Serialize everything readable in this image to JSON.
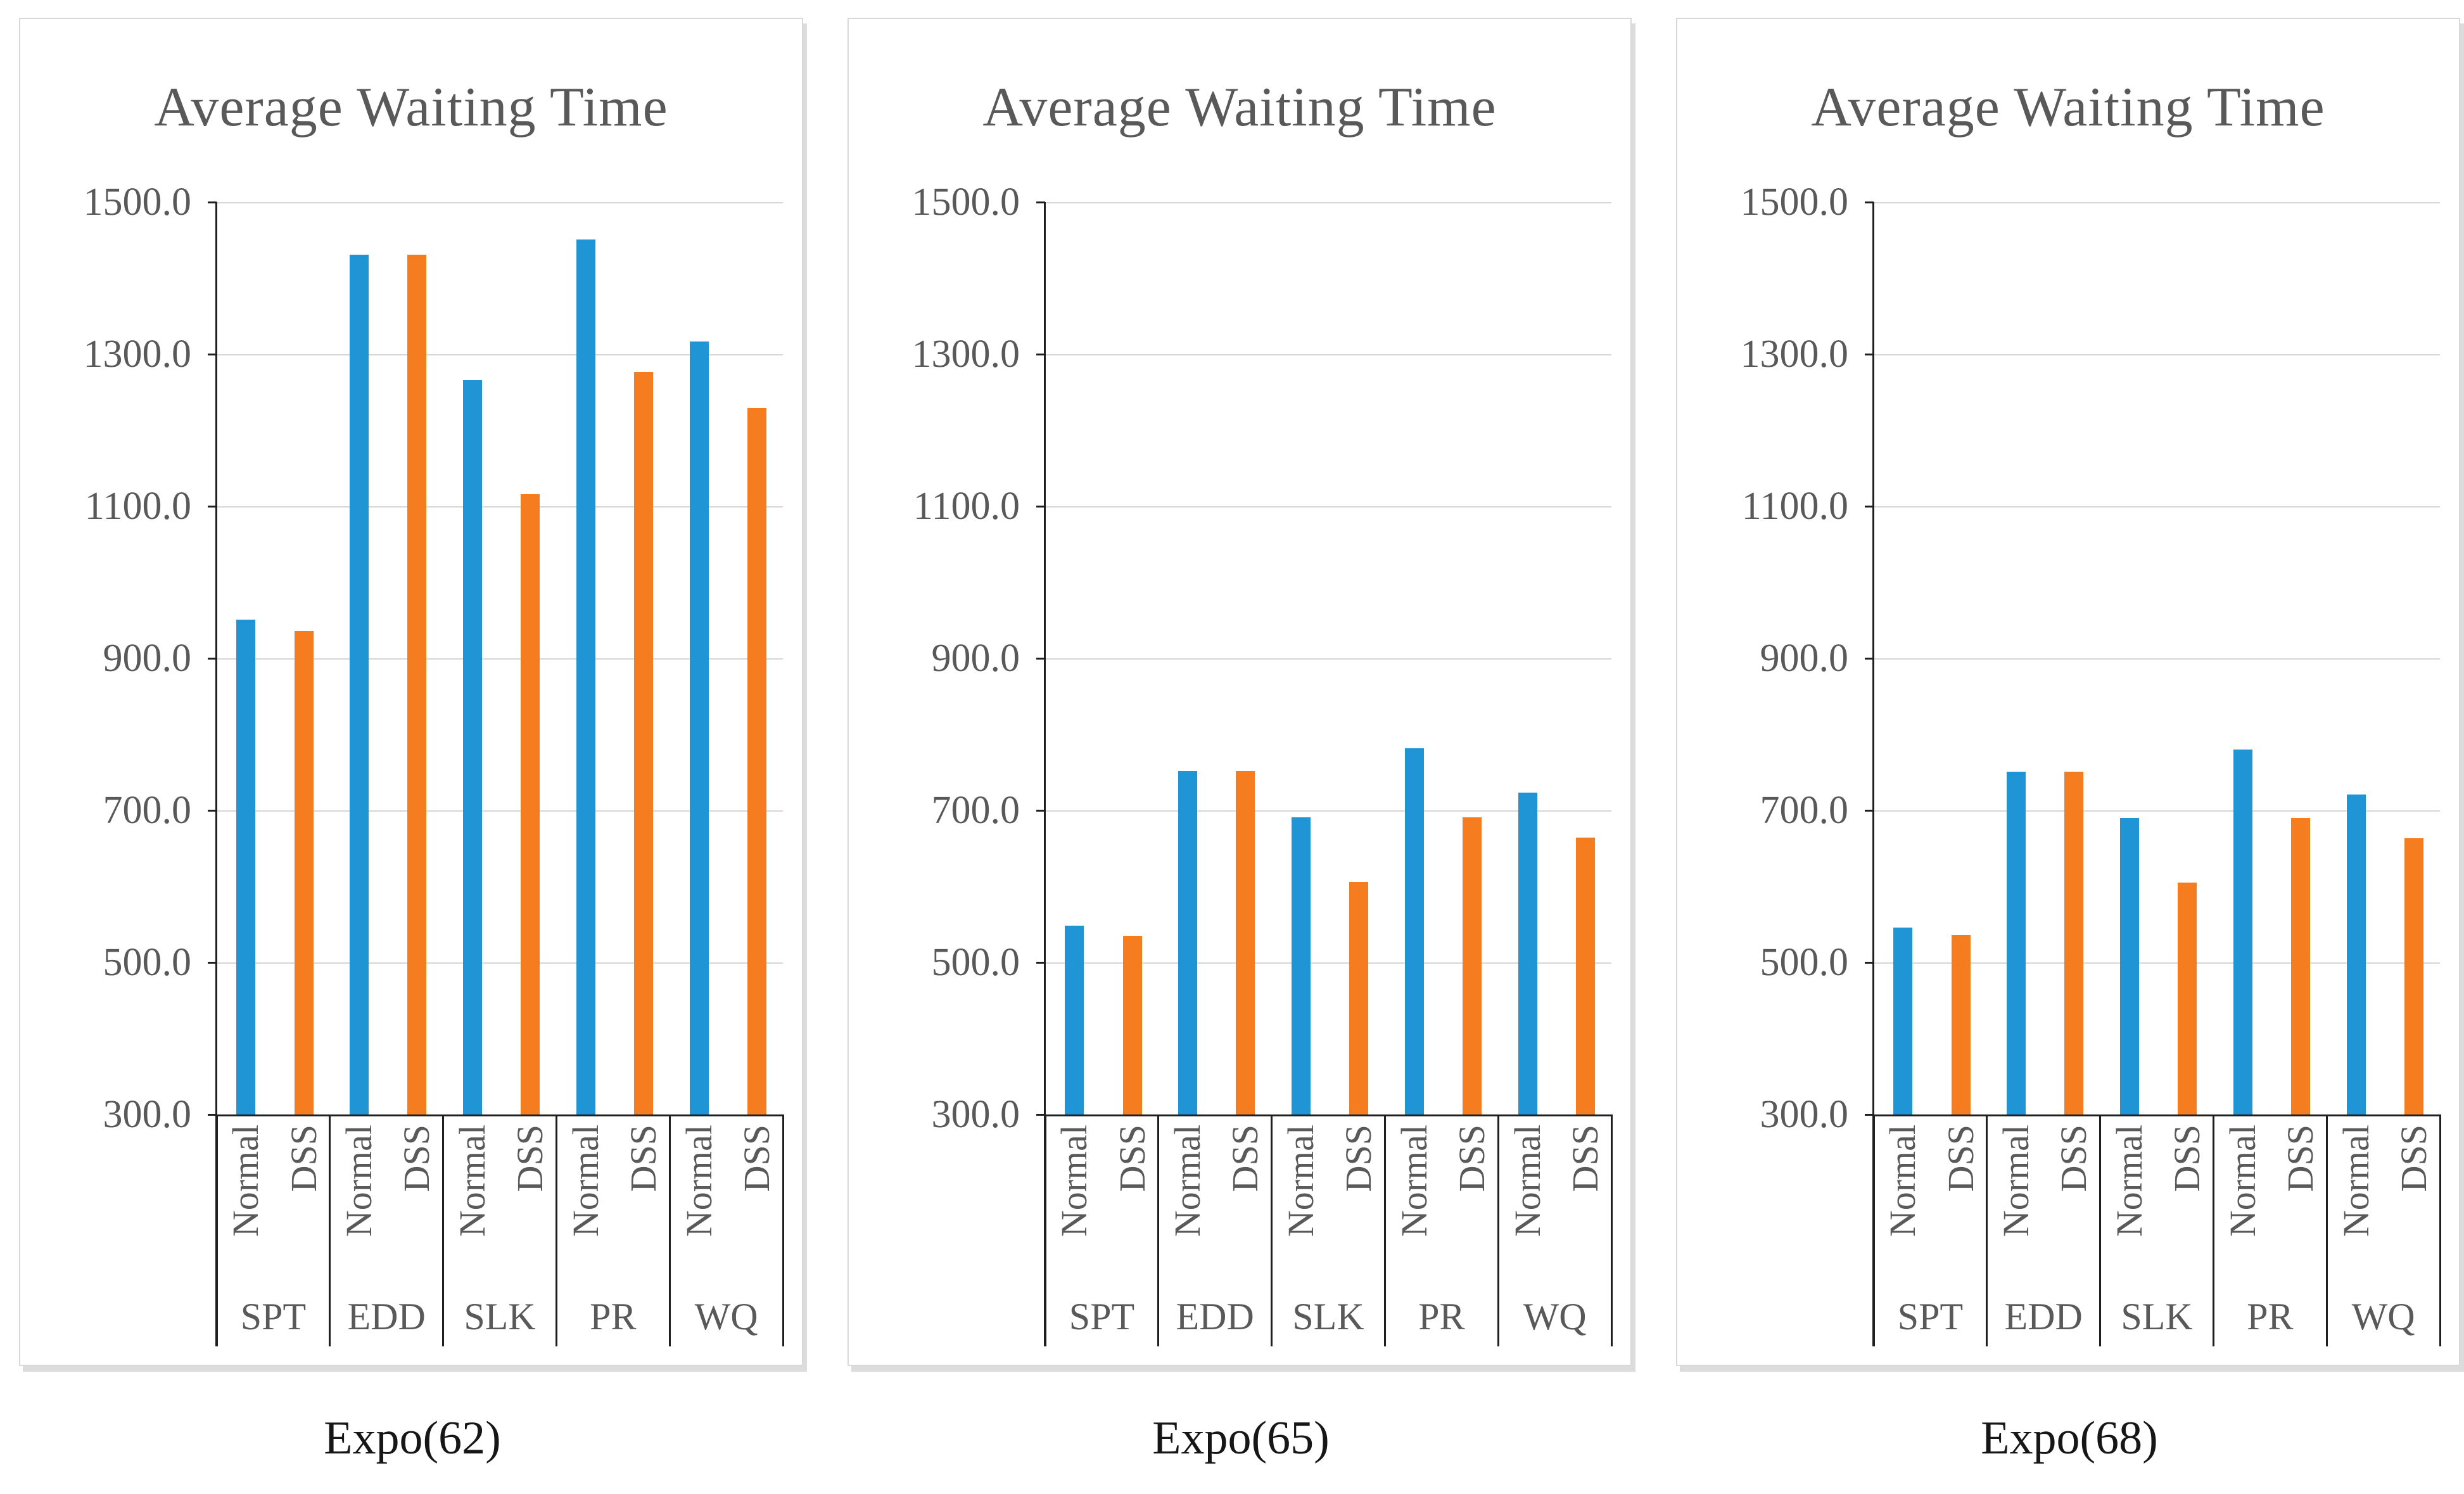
{
  "figure": {
    "background": "#ffffff",
    "panel_count": 3
  },
  "theme": {
    "grid_color": "#d6d6d6",
    "axis_color": "#1f1f1f",
    "label_color": "#595959",
    "caption_color": "#161616",
    "panel_border": "#d9d9d9",
    "panel_shadow": "#dcdcdc",
    "background": "#ffffff",
    "normal_series_color": "#2095d5",
    "dss_series_color": "#f67c20"
  },
  "chart_data": [
    {
      "type": "bar",
      "title": "Average Waiting Time",
      "caption": "Expo(62)",
      "categories": [
        "SPT",
        "EDD",
        "SLK",
        "PR",
        "WQ"
      ],
      "sub_labels": [
        "Normal",
        "DSS"
      ],
      "series": [
        {
          "name": "Normal",
          "color": "#2095d5",
          "values": [
            951,
            1431,
            1266,
            1451,
            1317
          ]
        },
        {
          "name": "DSS",
          "color": "#f67c20",
          "values": [
            936,
            1431,
            1116,
            1277,
            1229
          ]
        }
      ],
      "ylim": [
        300,
        1500
      ],
      "ytick_step": 200,
      "ytick_labels": [
        "1500.0",
        "1300.0",
        "1100.0",
        "900.0",
        "700.0",
        "500.0",
        "300.0"
      ],
      "grid": true,
      "legend": "none"
    },
    {
      "type": "bar",
      "title": "Average Waiting Time",
      "caption": "Expo(65)",
      "categories": [
        "SPT",
        "EDD",
        "SLK",
        "PR",
        "WQ"
      ],
      "sub_labels": [
        "Normal",
        "DSS"
      ],
      "series": [
        {
          "name": "Normal",
          "color": "#2095d5",
          "values": [
            548,
            752,
            691,
            782,
            723
          ]
        },
        {
          "name": "DSS",
          "color": "#f67c20",
          "values": [
            535,
            752,
            606,
            691,
            664
          ]
        }
      ],
      "ylim": [
        300,
        1500
      ],
      "ytick_step": 200,
      "ytick_labels": [
        "1500.0",
        "1300.0",
        "1100.0",
        "900.0",
        "700.0",
        "500.0",
        "300.0"
      ],
      "grid": true,
      "legend": "none"
    },
    {
      "type": "bar",
      "title": "Average Waiting Time",
      "caption": "Expo(68)",
      "categories": [
        "SPT",
        "EDD",
        "SLK",
        "PR",
        "WQ"
      ],
      "sub_labels": [
        "Normal",
        "DSS"
      ],
      "series": [
        {
          "name": "Normal",
          "color": "#2095d5",
          "values": [
            546,
            751,
            690,
            780,
            721
          ]
        },
        {
          "name": "DSS",
          "color": "#f67c20",
          "values": [
            536,
            751,
            605,
            690,
            663
          ]
        }
      ],
      "ylim": [
        300,
        1500
      ],
      "ytick_step": 200,
      "ytick_labels": [
        "1500.0",
        "1300.0",
        "1100.0",
        "900.0",
        "700.0",
        "500.0",
        "300.0"
      ],
      "grid": true,
      "legend": "none"
    }
  ]
}
